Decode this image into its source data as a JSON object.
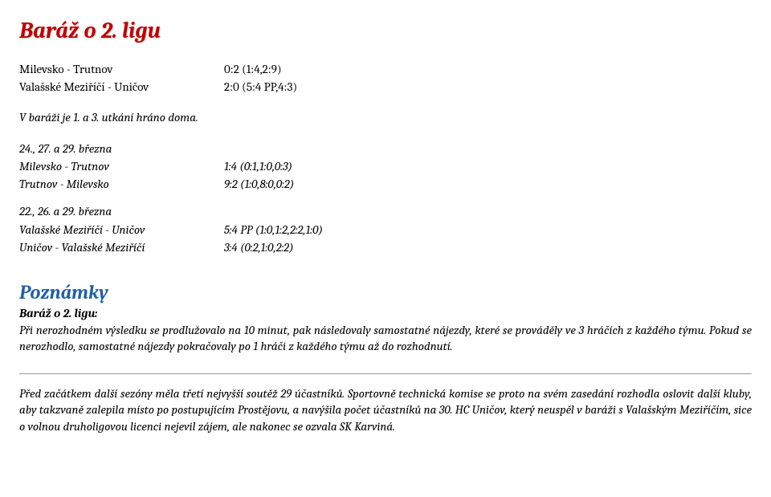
{
  "title": "Baráž o 2. ligu",
  "summary_matches": [
    {
      "teams": "Milevsko - Trutnov",
      "score": "0:2  (1:4,2:9)"
    },
    {
      "teams": "Valašské Meziříčí - Uničov",
      "score": "2:0  (5:4 PP,4:3)"
    }
  ],
  "summary_note": "V baráži je 1. a 3. utkání hráno doma.",
  "groups": [
    {
      "date": "24., 27. a 29. března",
      "matches": [
        {
          "teams": "Milevsko - Trutnov",
          "score": "1:4 (0:1,1:0,0:3)"
        },
        {
          "teams": "Trutnov - Milevsko",
          "score": "9:2 (1:0,8:0,0:2)"
        }
      ]
    },
    {
      "date": "22., 26. a 29. března",
      "matches": [
        {
          "teams": "Valašské Meziříčí - Uničov",
          "score": "5:4 PP (1:0,1:2,2:2,1:0)"
        },
        {
          "teams": "Uničov - Valašské Meziříčí",
          "score": "3:4 (0:2,1:0,2:2)"
        }
      ]
    }
  ],
  "notes_heading": "Poznámky",
  "notes_subheading": "Baráž o 2. ligu:",
  "notes_body": "Při nerozhodném výsledku se prodlužovalo na 10 minut, pak následovaly samostatné nájezdy, které se prováděly ve 3 hráčích z každého týmu. Pokud se nerozhodlo, samostatné nájezdy pokračovaly po 1 hráči z každého týmu až do rozhodnutí.",
  "final_paragraph": "Před začátkem další sezóny měla třetí nejvyšší soutěž 29 účastníků. Sportovně technická komise se proto na svém zasedání rozhodla oslovit další kluby, aby takzvaně zalepila místo po postupujícím Prostějovu, a navýšila počet účastníků na 30. HC Uničov, který neuspěl v baráži s Valašským Meziříčím, sice o volnou druholigovou licenci nejevil zájem, ale nakonec se ozvala SK Karviná.",
  "colors": {
    "title": "#c00000",
    "heading": "#1f5fa8",
    "text": "#000000",
    "background": "#ffffff",
    "divider": "#999999"
  }
}
